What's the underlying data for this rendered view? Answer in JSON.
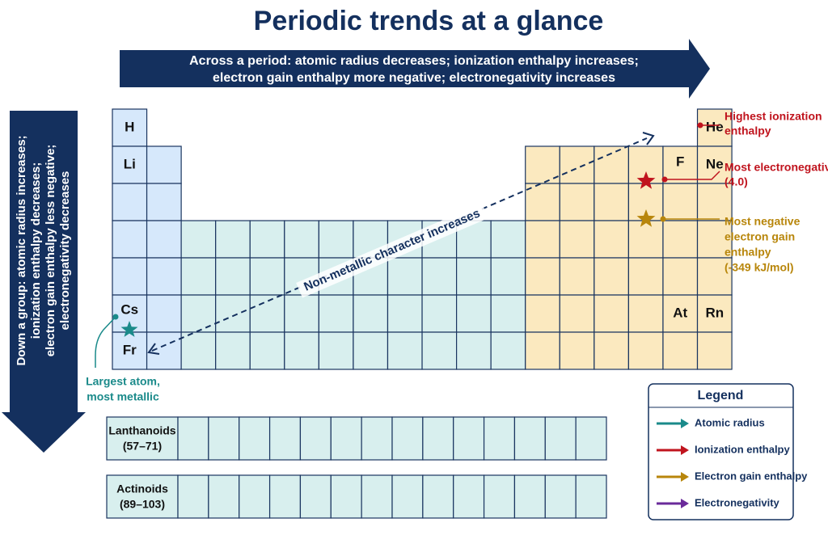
{
  "title": "Periodic trends at a glance",
  "across_arrow": {
    "lines": [
      "Across a period: atomic radius decreases; ionization enthalpy increases;",
      "electron gain enthalpy more negative; electronegativity increases"
    ]
  },
  "down_arrow": {
    "lines": [
      "Down a group: atomic radius increases;",
      "ionization enthalpy decreases;",
      "electron gain enthalpy less negative;",
      "electronegativity decreases"
    ]
  },
  "elements": [
    {
      "symbol": "H",
      "group": 1,
      "period": 1
    },
    {
      "symbol": "Li",
      "group": 1,
      "period": 2
    },
    {
      "symbol": "Cs",
      "group": 1,
      "period": 6
    },
    {
      "symbol": "Fr",
      "group": 1,
      "period": 7
    },
    {
      "symbol": "He",
      "group": 18,
      "period": 1
    },
    {
      "symbol": "F",
      "group": 17,
      "period": 2
    },
    {
      "symbol": "Ne",
      "group": 18,
      "period": 2
    },
    {
      "symbol": "At",
      "group": 17,
      "period": 6
    },
    {
      "symbol": "Rn",
      "group": 18,
      "period": 6
    }
  ],
  "diagonal_label": "Non-metallic character increases",
  "annotations": {
    "ionization": {
      "lines": [
        "Highest ionization",
        "enthalpy"
      ]
    },
    "electronegative": {
      "lines": [
        "Most electronegative",
        "(4.0)"
      ]
    },
    "electron_gain": {
      "lines": [
        "Most negative",
        "electron gain",
        "enthalpy",
        "(-349 kJ/mol)"
      ]
    },
    "largest": {
      "lines": [
        "Largest atom,",
        "most metallic"
      ]
    }
  },
  "lanthanoids": {
    "lines": [
      "Lanthanoids",
      "(57–71)"
    ]
  },
  "actinoids": {
    "lines": [
      "Actinoids",
      "(89–103)"
    ]
  },
  "legend": {
    "title": "Legend",
    "items": [
      {
        "label": "Atomic radius",
        "color": "#1a8a8a"
      },
      {
        "label": "Ionization enthalpy",
        "color": "#c0141e"
      },
      {
        "label": "Electron gain enthalpy",
        "color": "#b8860b"
      },
      {
        "label": "Electronegativity",
        "color": "#6a2a9a"
      }
    ]
  }
}
